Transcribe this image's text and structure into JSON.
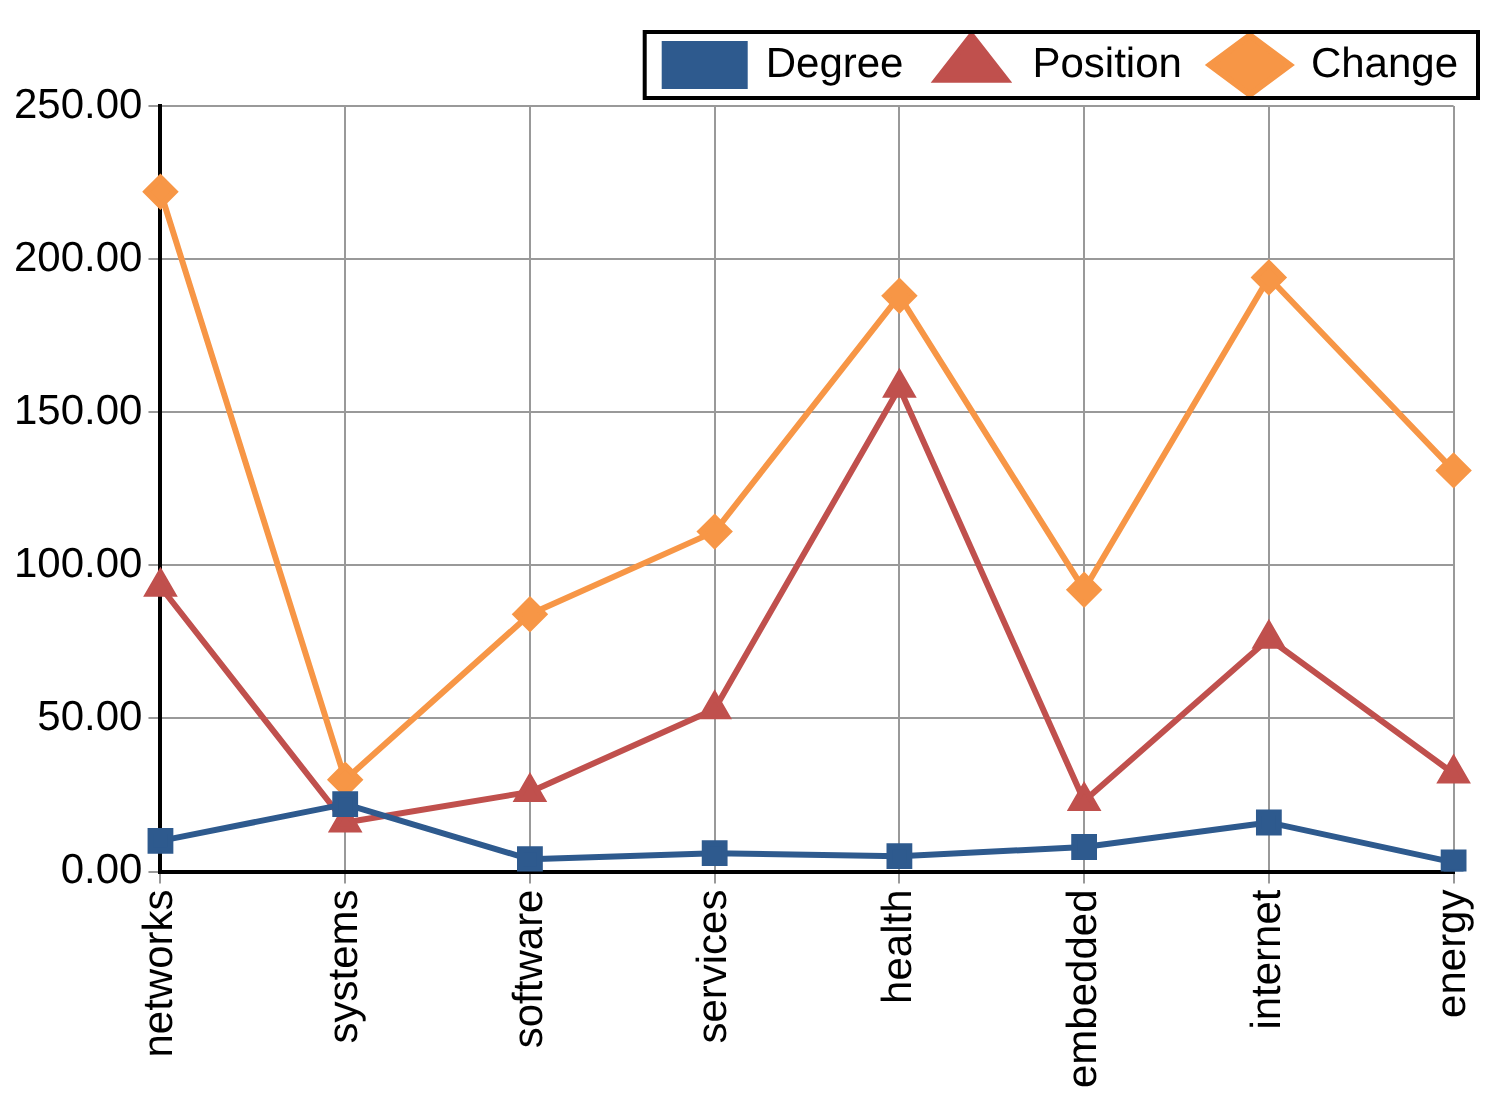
{
  "chart_data": {
    "type": "line",
    "categories": [
      "networks",
      "systems",
      "software",
      "services",
      "health",
      "embedded",
      "internet",
      "energy"
    ],
    "series": [
      {
        "name": "Degree",
        "color": "#2e5a8e",
        "marker": "square",
        "values": [
          10,
          22,
          4,
          6,
          5,
          8,
          16,
          3
        ]
      },
      {
        "name": "Position",
        "color": "#c0504d",
        "marker": "triangle",
        "values": [
          93,
          16,
          26,
          53,
          158,
          23,
          76,
          32
        ]
      },
      {
        "name": "Change",
        "color": "#f79646",
        "marker": "diamond",
        "values": [
          222,
          30,
          84,
          111,
          188,
          92,
          194,
          131
        ]
      }
    ],
    "ylim": [
      0,
      250
    ],
    "yticks": [
      {
        "value": 0,
        "label": "0.00"
      },
      {
        "value": 50,
        "label": "50.00"
      },
      {
        "value": 100,
        "label": "100.00"
      },
      {
        "value": 150,
        "label": "150.00"
      },
      {
        "value": 200,
        "label": "200.00"
      },
      {
        "value": 250,
        "label": "250.00"
      }
    ],
    "grid": true,
    "legend": "top right",
    "line_style": "solid"
  }
}
